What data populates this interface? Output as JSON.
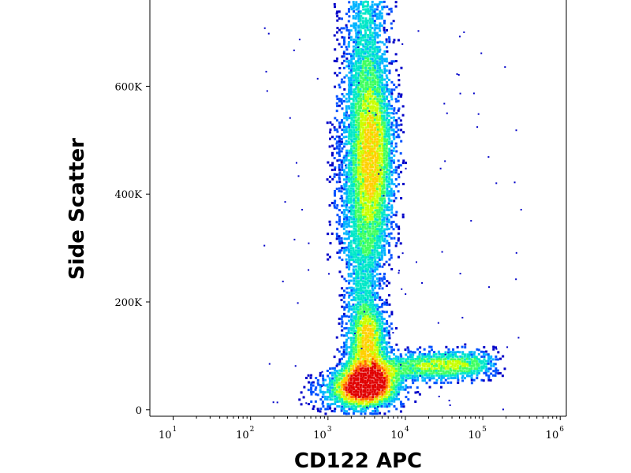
{
  "chart_data": {
    "type": "heatmap",
    "title": "",
    "xlabel": "CD122 APC",
    "ylabel": "Side Scatter",
    "x_scale": "log",
    "xlim": [
      5,
      1200000
    ],
    "ylim": [
      -12000,
      760000
    ],
    "x_ticks": [
      {
        "value": 10,
        "base": "10",
        "exp": "1"
      },
      {
        "value": 100,
        "base": "10",
        "exp": "2"
      },
      {
        "value": 1000,
        "base": "10",
        "exp": "3"
      },
      {
        "value": 10000,
        "base": "10",
        "exp": "4"
      },
      {
        "value": 100000,
        "base": "10",
        "exp": "5"
      },
      {
        "value": 1000000,
        "base": "10",
        "exp": "6"
      }
    ],
    "y_ticks": [
      {
        "value": 0,
        "label": "0"
      },
      {
        "value": 200000,
        "label": "200K"
      },
      {
        "value": 400000,
        "label": "400K"
      },
      {
        "value": 600000,
        "label": "600K"
      }
    ],
    "density_colors": [
      "#0000c8",
      "#0050ff",
      "#00b4ff",
      "#00e8c8",
      "#40ff60",
      "#c8ff00",
      "#ffd000",
      "#ff6000",
      "#e00000"
    ],
    "populations": [
      {
        "x_center": 3000,
        "y_center": 45000,
        "relative_density": 1.0
      },
      {
        "x_center": 3800,
        "y_center": 470000,
        "relative_density": 0.6
      },
      {
        "x_center": 3500,
        "y_center": 140000,
        "relative_density": 0.55
      },
      {
        "x_center": 30000,
        "y_center": 85000,
        "relative_density": 0.4
      }
    ]
  }
}
